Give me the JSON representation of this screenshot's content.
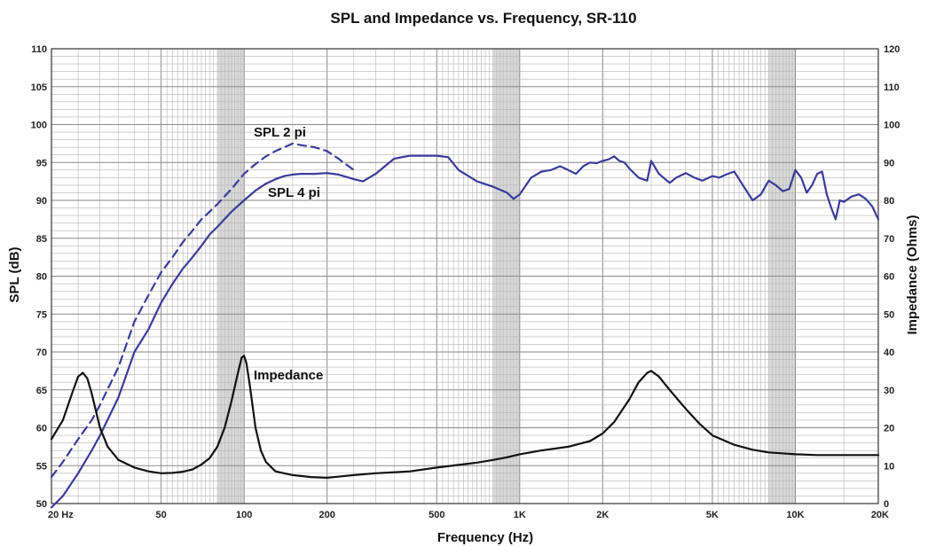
{
  "chart_data": {
    "type": "line",
    "title": "SPL and Impedance vs. Frequency, SR-110",
    "xlabel": "Frequency (Hz)",
    "ylabel": "SPL (dB)",
    "y2label": "Impedance (Ohms)",
    "xscale": "log",
    "xlim": [
      20,
      20000
    ],
    "ylim": [
      50,
      110
    ],
    "y2lim": [
      0,
      120
    ],
    "grid": true,
    "x_ticks": [
      {
        "value": 20,
        "label": "20  Hz"
      },
      {
        "value": 50,
        "label": "50"
      },
      {
        "value": 100,
        "label": "100"
      },
      {
        "value": 200,
        "label": "200"
      },
      {
        "value": 500,
        "label": "500"
      },
      {
        "value": 1000,
        "label": "1K"
      },
      {
        "value": 2000,
        "label": "2K"
      },
      {
        "value": 5000,
        "label": "5K"
      },
      {
        "value": 10000,
        "label": "10K"
      },
      {
        "value": 20000,
        "label": "20K"
      }
    ],
    "y_ticks": [
      50,
      55,
      60,
      65,
      70,
      75,
      80,
      85,
      90,
      95,
      100,
      105,
      110
    ],
    "y2_ticks": [
      0,
      10,
      20,
      30,
      40,
      50,
      60,
      70,
      80,
      90,
      100,
      110,
      120
    ],
    "colors": {
      "spl": "#3b3b9a",
      "impedance": "#111111",
      "grid": "#b5b5b5",
      "band": "#d9d9d9"
    },
    "series": [
      {
        "name": "SPL 2 pi",
        "axis": "left",
        "style": "dashed",
        "x": [
          20,
          22,
          25,
          28,
          30,
          35,
          40,
          45,
          50,
          55,
          60,
          65,
          70,
          75,
          80,
          90,
          100,
          110,
          120,
          130,
          140,
          150,
          160,
          180,
          200,
          220,
          250
        ],
        "y": [
          53.5,
          55.5,
          58.5,
          61,
          63,
          68,
          74,
          77.5,
          80.5,
          82.5,
          84.5,
          86,
          87.5,
          88.5,
          89.5,
          91.5,
          93.5,
          94.8,
          95.8,
          96.5,
          97.0,
          97.5,
          97.3,
          97.0,
          96.5,
          95.5,
          94
        ]
      },
      {
        "name": "SPL 4 pi",
        "axis": "left",
        "style": "solid",
        "x": [
          20,
          22,
          25,
          28,
          30,
          35,
          40,
          45,
          50,
          55,
          60,
          65,
          70,
          75,
          80,
          90,
          100,
          110,
          120,
          130,
          140,
          150,
          160,
          180,
          200,
          220,
          250,
          270,
          300,
          350,
          400,
          450,
          500,
          550,
          600,
          700,
          800,
          900,
          950,
          1000,
          1100,
          1200,
          1300,
          1400,
          1500,
          1600,
          1700,
          1800,
          1900,
          2000,
          2100,
          2200,
          2300,
          2400,
          2500,
          2700,
          2900,
          3000,
          3200,
          3500,
          3700,
          4000,
          4300,
          4600,
          5000,
          5300,
          5600,
          6000,
          6500,
          7000,
          7500,
          8000,
          8500,
          9000,
          9500,
          10000,
          10500,
          11000,
          11500,
          12000,
          12500,
          13000,
          13500,
          14000,
          14500,
          15000,
          16000,
          17000,
          18000,
          19000,
          20000
        ],
        "y": [
          49.5,
          51,
          54,
          57,
          59,
          64,
          70,
          73,
          76.5,
          79,
          81,
          82.5,
          84,
          85.5,
          86.5,
          88.5,
          90,
          91.3,
          92.2,
          92.8,
          93.2,
          93.4,
          93.5,
          93.5,
          93.6,
          93.4,
          92.8,
          92.5,
          93.5,
          95.5,
          95.9,
          95.9,
          95.9,
          95.7,
          94.0,
          92.5,
          91.8,
          91.0,
          90.2,
          90.8,
          93.0,
          93.8,
          94.0,
          94.5,
          94.0,
          93.5,
          94.5,
          95.0,
          94.9,
          95.2,
          95.4,
          95.8,
          95.2,
          95.0,
          94.2,
          93.0,
          92.6,
          95.2,
          93.5,
          92.3,
          93.0,
          93.6,
          93.0,
          92.6,
          93.2,
          93.0,
          93.4,
          93.8,
          91.8,
          90.0,
          90.8,
          92.6,
          92.0,
          91.2,
          91.5,
          94.0,
          93.0,
          91.0,
          92.0,
          93.5,
          93.8,
          90.8,
          89.0,
          87.5,
          90.0,
          89.8,
          90.5,
          90.8,
          90.2,
          89.2,
          87.5
        ]
      },
      {
        "name": "Impedance",
        "axis": "right",
        "style": "solid",
        "x": [
          20,
          22,
          24,
          25,
          26,
          27,
          28,
          30,
          32,
          35,
          40,
          45,
          50,
          55,
          60,
          65,
          70,
          75,
          80,
          85,
          90,
          95,
          98,
          100,
          102,
          105,
          110,
          115,
          120,
          130,
          150,
          175,
          200,
          250,
          300,
          400,
          500,
          600,
          700,
          800,
          900,
          1000,
          1200,
          1500,
          1800,
          2000,
          2200,
          2500,
          2700,
          2900,
          3000,
          3200,
          3500,
          4000,
          4500,
          5000,
          6000,
          7000,
          8000,
          10000,
          12000,
          15000,
          20000
        ],
        "y": [
          17,
          22,
          30,
          33.5,
          34.5,
          33,
          29,
          20,
          15,
          11.5,
          9.5,
          8.5,
          8,
          8.1,
          8.4,
          9,
          10.3,
          12,
          15,
          20,
          27,
          34.5,
          38.5,
          39,
          37,
          31,
          20,
          14,
          11,
          8.5,
          7.5,
          7,
          6.8,
          7.5,
          8,
          8.5,
          9.5,
          10.2,
          10.8,
          11.5,
          12.2,
          13,
          14,
          15,
          16.5,
          18.5,
          21.5,
          27.5,
          32,
          34.5,
          35,
          33.5,
          30,
          25,
          21,
          18,
          15.5,
          14.2,
          13.5,
          13,
          12.8,
          12.8,
          12.8
        ]
      }
    ],
    "annotations": [
      {
        "text": "SPL 2 pi",
        "series": "SPL 2 pi"
      },
      {
        "text": "SPL 4 pi",
        "series": "SPL 4 pi"
      },
      {
        "text": "Impedance",
        "series": "Impedance"
      }
    ]
  }
}
